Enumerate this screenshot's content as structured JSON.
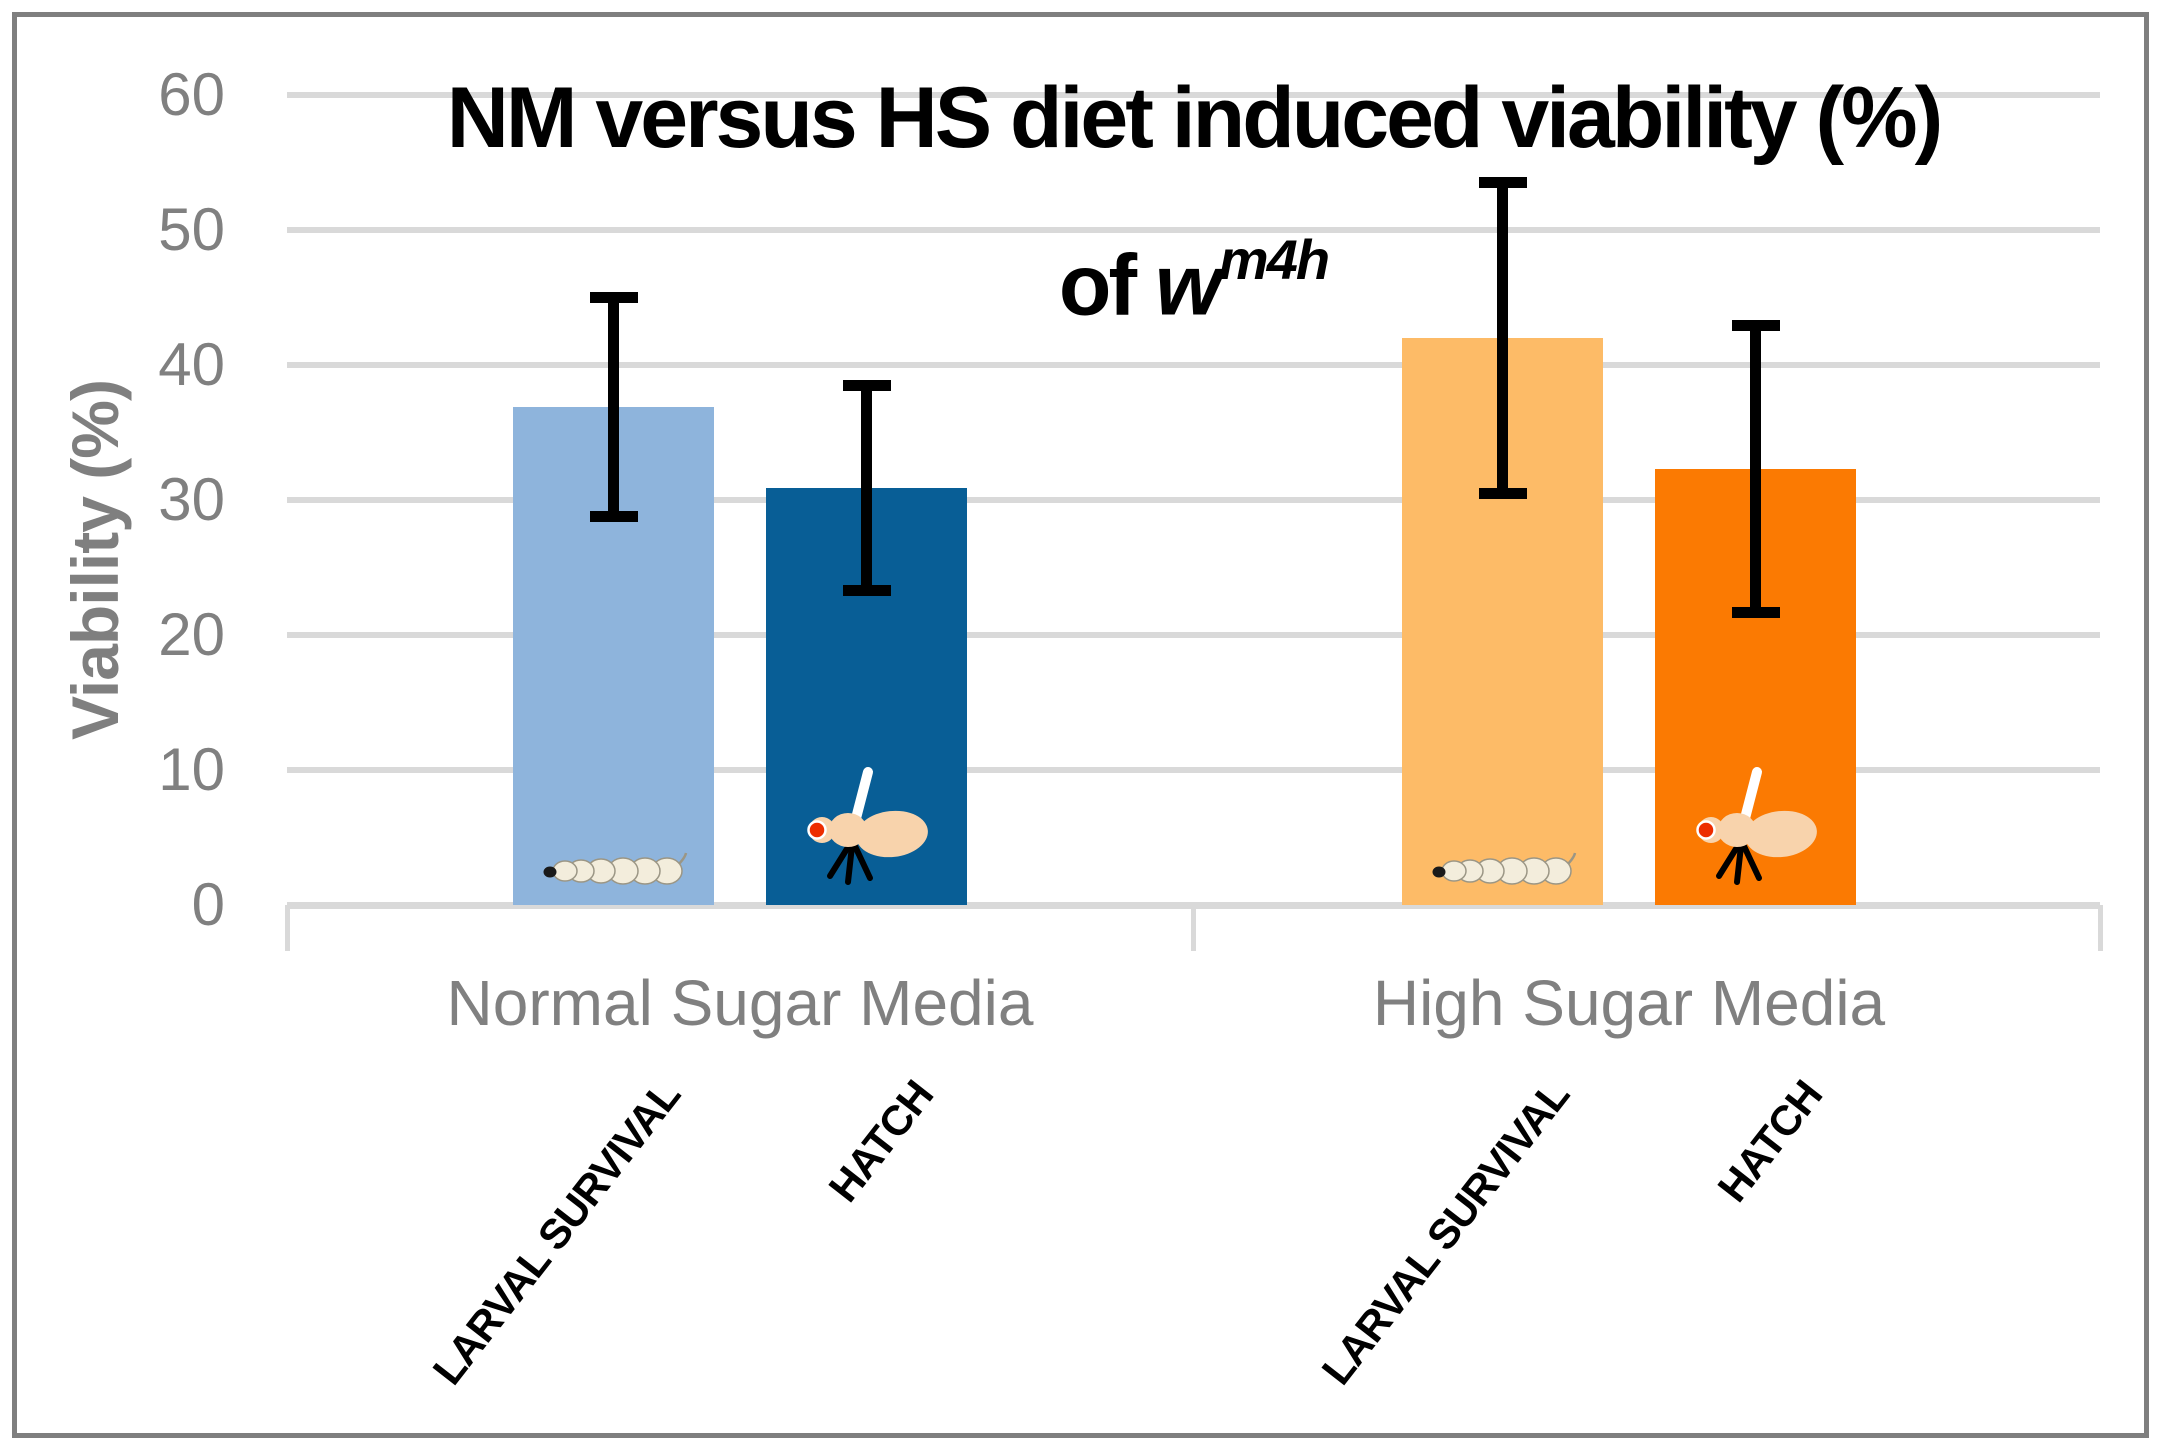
{
  "chart_data": {
    "type": "bar",
    "title": {
      "line1": "NM versus HS diet induced viability (%)",
      "line2_prefix": "of ",
      "line2_gene": "w",
      "line2_sup": "m4h"
    },
    "ylabel": "Viability (%)",
    "ylim": [
      0,
      60
    ],
    "yticks": [
      0,
      10,
      20,
      30,
      40,
      50,
      60
    ],
    "grid": "horizontal",
    "legend": "none",
    "groups": [
      {
        "category": "Normal Sugar Media",
        "bars": [
          {
            "label": "LARVAL SURVIVAL",
            "value": 36.9,
            "error": 8.1,
            "color": "#8EB4DC",
            "icon": "larva-icon"
          },
          {
            "label": "HATCH",
            "value": 30.9,
            "error": 7.6,
            "color": "#085E96",
            "icon": "fly-icon"
          }
        ]
      },
      {
        "category": "High Sugar Media",
        "bars": [
          {
            "label": "LARVAL SURVIVAL",
            "value": 42.0,
            "error": 11.5,
            "color": "#FDBB67",
            "icon": "larva-icon"
          },
          {
            "label": "HATCH",
            "value": 32.3,
            "error": 10.6,
            "color": "#FB7A02",
            "icon": "fly-icon"
          }
        ]
      }
    ]
  },
  "colors": {
    "gridline": "#D9D9D9",
    "axis_text": "#808080",
    "axis_title": "#7F7F7F",
    "category_text": "#808080",
    "error_bar": "#000000",
    "border": "#7F7F7F",
    "title_text": "#000000",
    "larva_body": "#F3EDDC",
    "larva_outline": "#9B9685",
    "fly_body": "#F8D3AC",
    "fly_eye": "#ED2D00",
    "fly_wing": "#FFFFFF"
  }
}
